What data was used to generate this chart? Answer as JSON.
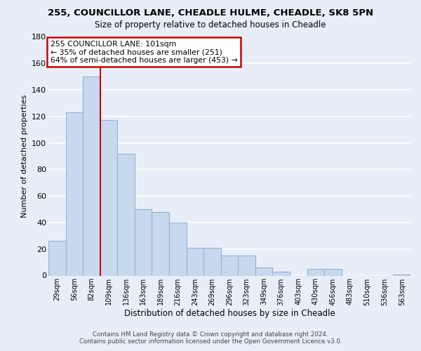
{
  "title": "255, COUNCILLOR LANE, CHEADLE HULME, CHEADLE, SK8 5PN",
  "subtitle": "Size of property relative to detached houses in Cheadle",
  "xlabel": "Distribution of detached houses by size in Cheadle",
  "ylabel": "Number of detached properties",
  "bar_color": "#c8d8ee",
  "bar_edge_color": "#92b4d4",
  "background_color": "#e8eef8",
  "grid_color": "#ffffff",
  "bins": [
    "29sqm",
    "56sqm",
    "82sqm",
    "109sqm",
    "136sqm",
    "163sqm",
    "189sqm",
    "216sqm",
    "243sqm",
    "269sqm",
    "296sqm",
    "323sqm",
    "349sqm",
    "376sqm",
    "403sqm",
    "430sqm",
    "456sqm",
    "483sqm",
    "510sqm",
    "536sqm",
    "563sqm"
  ],
  "values": [
    26,
    123,
    150,
    117,
    92,
    50,
    48,
    40,
    21,
    21,
    15,
    15,
    6,
    3,
    0,
    5,
    5,
    0,
    0,
    0,
    1
  ],
  "ylim": [
    0,
    180
  ],
  "yticks": [
    0,
    20,
    40,
    60,
    80,
    100,
    120,
    140,
    160,
    180
  ],
  "vline_pos": 2.5,
  "vline_color": "#cc0000",
  "annotation_text": "255 COUNCILLOR LANE: 101sqm\n← 35% of detached houses are smaller (251)\n64% of semi-detached houses are larger (453) →",
  "annotation_box_color": "#ffffff",
  "annotation_box_edge": "#cc0000",
  "footer_line1": "Contains HM Land Registry data © Crown copyright and database right 2024.",
  "footer_line2": "Contains public sector information licensed under the Open Government Licence v3.0."
}
